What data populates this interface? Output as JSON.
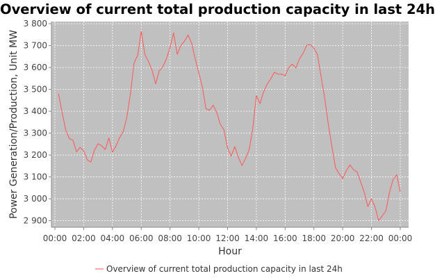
{
  "colors": {
    "plot_bg": "#c0c0c0",
    "grid": "#ffffff",
    "series": "#ff5555",
    "axis": "#888888"
  },
  "chart_data": {
    "type": "line",
    "title": "Overview of current total production capacity in last 24h",
    "xlabel": "Hour",
    "ylabel": "Power Generation/Production, Unit MW",
    "xlim": [
      "00:00",
      "24:00"
    ],
    "ylim": [
      2870,
      3810
    ],
    "x_tick_labels": [
      "00:00",
      "02:00",
      "04:00",
      "06:00",
      "08:00",
      "10:00",
      "12:00",
      "14:00",
      "16:00",
      "18:00",
      "20:00",
      "22:00",
      "00:00"
    ],
    "x_tick_hours": [
      0,
      2,
      4,
      6,
      8,
      10,
      12,
      14,
      16,
      18,
      20,
      22,
      24
    ],
    "y_ticks": [
      2900,
      3000,
      3100,
      3200,
      3300,
      3400,
      3500,
      3600,
      3700,
      3800
    ],
    "y_tick_labels": [
      "2 900",
      "3 000",
      "3 100",
      "3 200",
      "3 300",
      "3 400",
      "3 500",
      "3 600",
      "3 700",
      "3 800"
    ],
    "grid": true,
    "legend_position": "bottom",
    "series": [
      {
        "name": "Overview of current total production capacity in last 24h",
        "x": [
          "00:15",
          "00:30",
          "00:45",
          "01:00",
          "01:15",
          "01:30",
          "01:45",
          "02:00",
          "02:15",
          "02:30",
          "02:45",
          "03:00",
          "03:15",
          "03:30",
          "03:45",
          "04:00",
          "04:15",
          "04:30",
          "04:45",
          "05:00",
          "05:15",
          "05:30",
          "05:45",
          "06:00",
          "06:15",
          "06:30",
          "06:45",
          "07:00",
          "07:15",
          "07:30",
          "07:45",
          "08:00",
          "08:15",
          "08:30",
          "08:45",
          "09:00",
          "09:15",
          "09:30",
          "09:45",
          "10:00",
          "10:15",
          "10:30",
          "10:45",
          "11:00",
          "11:15",
          "11:30",
          "11:45",
          "12:00",
          "12:15",
          "12:30",
          "12:45",
          "13:00",
          "13:15",
          "13:30",
          "13:45",
          "14:00",
          "14:15",
          "14:30",
          "14:45",
          "15:00",
          "15:15",
          "15:30",
          "15:45",
          "16:00",
          "16:15",
          "16:30",
          "16:45",
          "17:00",
          "17:15",
          "17:30",
          "17:45",
          "18:00",
          "18:15",
          "18:30",
          "18:45",
          "19:00",
          "19:15",
          "19:30",
          "19:45",
          "20:00",
          "20:15",
          "20:30",
          "20:45",
          "21:00",
          "21:15",
          "21:30",
          "21:45",
          "22:00",
          "22:15",
          "22:30",
          "22:45",
          "23:00",
          "23:15",
          "23:30",
          "23:45",
          "24:00"
        ],
        "values": [
          3480,
          3395,
          3315,
          3275,
          3268,
          3215,
          3235,
          3220,
          3178,
          3168,
          3222,
          3252,
          3242,
          3225,
          3278,
          3213,
          3242,
          3280,
          3308,
          3372,
          3480,
          3620,
          3656,
          3765,
          3660,
          3628,
          3588,
          3525,
          3585,
          3603,
          3640,
          3692,
          3758,
          3660,
          3700,
          3720,
          3748,
          3712,
          3640,
          3575,
          3510,
          3412,
          3405,
          3428,
          3394,
          3340,
          3315,
          3232,
          3195,
          3238,
          3190,
          3152,
          3185,
          3225,
          3320,
          3472,
          3435,
          3488,
          3524,
          3548,
          3578,
          3570,
          3570,
          3562,
          3600,
          3615,
          3598,
          3640,
          3665,
          3702,
          3705,
          3688,
          3658,
          3558,
          3460,
          3340,
          3240,
          3142,
          3115,
          3093,
          3128,
          3155,
          3134,
          3122,
          3076,
          3030,
          2965,
          3000,
          2962,
          2900,
          2922,
          2945,
          3030,
          3088,
          3110,
          3032
        ]
      }
    ]
  }
}
